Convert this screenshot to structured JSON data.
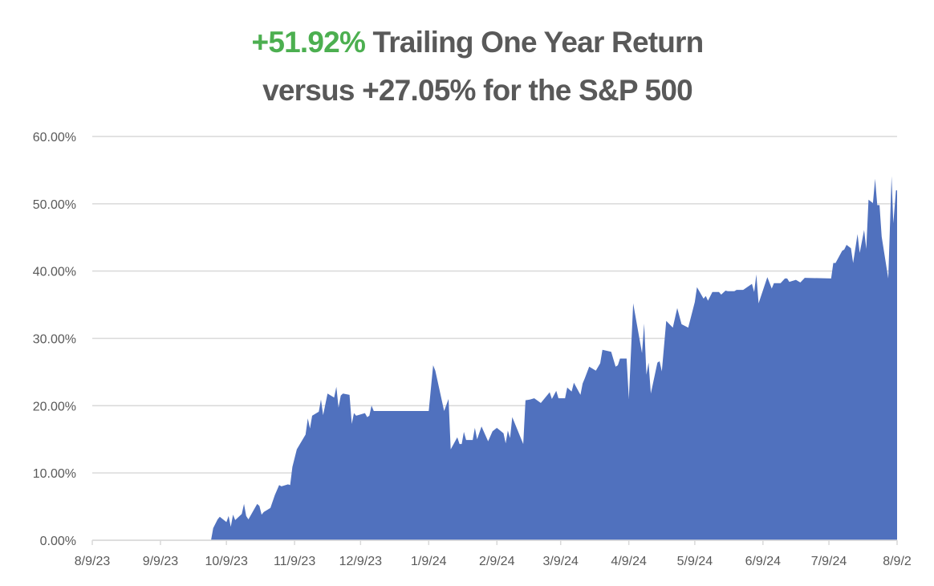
{
  "chart_data": {
    "type": "area",
    "title_highlight": "+51.92%",
    "title_line1_rest": " Trailing One Year Return",
    "title_line2": "versus  +27.05% for the S&P 500",
    "xlabel": "",
    "ylabel": "",
    "x_unit": "days since 8/9/23",
    "xlim": [
      0,
      366
    ],
    "ylim": [
      0,
      60
    ],
    "grid": true,
    "legend": "none",
    "colors": {
      "area": "#5071BE",
      "highlight": "#4CAF50",
      "text": "#595959",
      "grid": "#D9D9D9"
    },
    "y_ticks": [
      {
        "value": 0,
        "label": "0.00%"
      },
      {
        "value": 10,
        "label": "10.00%"
      },
      {
        "value": 20,
        "label": "20.00%"
      },
      {
        "value": 30,
        "label": "30.00%"
      },
      {
        "value": 40,
        "label": "40.00%"
      },
      {
        "value": 50,
        "label": "50.00%"
      },
      {
        "value": 60,
        "label": "60.00%"
      }
    ],
    "x_ticks": [
      {
        "value": 0,
        "label": "8/9/23"
      },
      {
        "value": 31,
        "label": "9/9/23"
      },
      {
        "value": 61,
        "label": "10/9/23"
      },
      {
        "value": 92,
        "label": "11/9/23"
      },
      {
        "value": 122,
        "label": "12/9/23"
      },
      {
        "value": 153,
        "label": "1/9/24"
      },
      {
        "value": 184,
        "label": "2/9/24"
      },
      {
        "value": 213,
        "label": "3/9/24"
      },
      {
        "value": 244,
        "label": "4/9/24"
      },
      {
        "value": 274,
        "label": "5/9/24"
      },
      {
        "value": 305,
        "label": "6/9/24"
      },
      {
        "value": 335,
        "label": "7/9/24"
      },
      {
        "value": 366,
        "label": "8/9/2"
      }
    ],
    "points": [
      [
        0,
        0
      ],
      [
        54,
        0
      ],
      [
        55,
        1.8
      ],
      [
        57,
        3.1
      ],
      [
        58,
        3.5
      ],
      [
        61,
        2.7
      ],
      [
        62,
        3.6
      ],
      [
        63,
        2.0
      ],
      [
        64,
        3.8
      ],
      [
        65,
        3.0
      ],
      [
        68,
        3.9
      ],
      [
        69,
        5.4
      ],
      [
        70,
        3.6
      ],
      [
        71,
        3.1
      ],
      [
        75,
        5.4
      ],
      [
        76,
        5.1
      ],
      [
        77,
        3.8
      ],
      [
        78,
        4.2
      ],
      [
        81,
        4.8
      ],
      [
        83,
        6.7
      ],
      [
        85,
        8.2
      ],
      [
        86,
        8.0
      ],
      [
        89,
        8.3
      ],
      [
        90,
        8.2
      ],
      [
        91,
        10.9
      ],
      [
        93,
        13.5
      ],
      [
        97,
        15.7
      ],
      [
        98,
        18.1
      ],
      [
        99,
        16.6
      ],
      [
        100,
        18.5
      ],
      [
        103,
        19.1
      ],
      [
        104,
        20.9
      ],
      [
        105,
        18.6
      ],
      [
        107,
        21.8
      ],
      [
        110,
        21.2
      ],
      [
        111,
        22.8
      ],
      [
        112,
        19.7
      ],
      [
        113,
        21.5
      ],
      [
        114,
        21.8
      ],
      [
        117,
        21.6
      ],
      [
        118,
        17.3
      ],
      [
        119,
        18.9
      ],
      [
        120,
        18.5
      ],
      [
        124,
        18.9
      ],
      [
        125,
        18.3
      ],
      [
        126,
        18.5
      ],
      [
        127,
        20.0
      ],
      [
        128,
        19.2
      ],
      [
        153,
        19.2
      ],
      [
        155,
        26.0
      ],
      [
        156,
        25.2
      ],
      [
        160,
        19.2
      ],
      [
        162,
        21.0
      ],
      [
        163,
        13.5
      ],
      [
        166,
        15.3
      ],
      [
        167,
        14.3
      ],
      [
        168,
        14.3
      ],
      [
        169,
        16.1
      ],
      [
        170,
        14.9
      ],
      [
        173,
        14.9
      ],
      [
        174,
        16.7
      ],
      [
        175,
        15.0
      ],
      [
        177,
        16.9
      ],
      [
        180,
        14.7
      ],
      [
        182,
        16.2
      ],
      [
        184,
        16.7
      ],
      [
        187,
        15.9
      ],
      [
        188,
        14.4
      ],
      [
        189,
        16.3
      ],
      [
        190,
        15.2
      ],
      [
        191,
        18.3
      ],
      [
        196,
        14.3
      ],
      [
        197,
        20.8
      ],
      [
        199,
        20.9
      ],
      [
        201,
        21.1
      ],
      [
        204,
        20.4
      ],
      [
        208,
        22.0
      ],
      [
        209,
        21.0
      ],
      [
        211,
        22.2
      ],
      [
        212,
        21.1
      ],
      [
        215,
        21.1
      ],
      [
        216,
        22.7
      ],
      [
        218,
        22.1
      ],
      [
        219,
        23.4
      ],
      [
        222,
        21.6
      ],
      [
        223,
        23.3
      ],
      [
        224,
        24.1
      ],
      [
        226,
        25.8
      ],
      [
        229,
        25.2
      ],
      [
        231,
        26.3
      ],
      [
        232,
        28.3
      ],
      [
        236,
        28.0
      ],
      [
        238,
        25.8
      ],
      [
        239,
        26.0
      ],
      [
        240,
        27.0
      ],
      [
        243,
        27.0
      ],
      [
        244,
        21.0
      ],
      [
        246,
        35.2
      ],
      [
        250,
        27.8
      ],
      [
        251,
        32.2
      ],
      [
        252,
        24.6
      ],
      [
        253,
        26.4
      ],
      [
        254,
        21.8
      ],
      [
        257,
        26.4
      ],
      [
        258,
        26.6
      ],
      [
        259,
        25.1
      ],
      [
        261,
        32.6
      ],
      [
        264,
        31.6
      ],
      [
        266,
        34.5
      ],
      [
        268,
        32.1
      ],
      [
        271,
        31.6
      ],
      [
        273,
        34.1
      ],
      [
        274,
        35.4
      ],
      [
        275,
        37.6
      ],
      [
        278,
        35.9
      ],
      [
        279,
        36.3
      ],
      [
        280,
        35.6
      ],
      [
        282,
        36.9
      ],
      [
        285,
        36.9
      ],
      [
        286,
        36.5
      ],
      [
        288,
        37.1
      ],
      [
        289,
        37.0
      ],
      [
        292,
        37.0
      ],
      [
        293,
        37.2
      ],
      [
        296,
        37.2
      ],
      [
        300,
        38.1
      ],
      [
        301,
        36.9
      ],
      [
        302,
        39.5
      ],
      [
        303,
        35.2
      ],
      [
        307,
        39.1
      ],
      [
        309,
        37.4
      ],
      [
        310,
        38.2
      ],
      [
        313,
        38.2
      ],
      [
        315,
        38.9
      ],
      [
        316,
        38.9
      ],
      [
        317,
        38.4
      ],
      [
        320,
        38.7
      ],
      [
        322,
        38.3
      ],
      [
        324,
        39.0
      ],
      [
        336,
        38.9
      ],
      [
        337,
        41.2
      ],
      [
        338,
        41.2
      ],
      [
        341,
        43.0
      ],
      [
        342,
        43.2
      ],
      [
        343,
        43.9
      ],
      [
        345,
        43.4
      ],
      [
        346,
        41.2
      ],
      [
        348,
        45.5
      ],
      [
        349,
        42.7
      ],
      [
        351,
        46.1
      ],
      [
        352,
        43.3
      ],
      [
        353,
        50.6
      ],
      [
        355,
        50.1
      ],
      [
        356,
        53.7
      ],
      [
        357,
        49.8
      ],
      [
        358,
        49.8
      ],
      [
        359,
        45.1
      ],
      [
        362,
        38.9
      ],
      [
        363.5,
        54.1
      ],
      [
        364.3,
        47.1
      ],
      [
        365.5,
        52.0
      ],
      [
        366,
        52.0
      ],
      [
        366,
        0
      ]
    ]
  }
}
